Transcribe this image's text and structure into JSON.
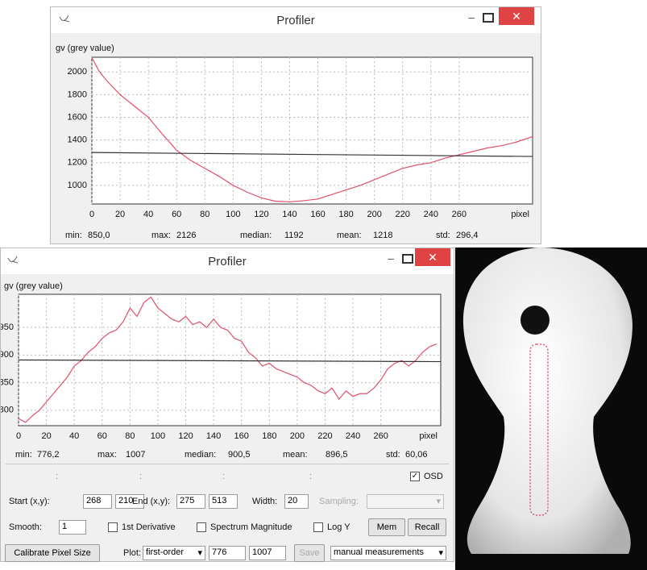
{
  "windows": [
    {
      "title": "Profiler",
      "ylabel": "gv (grey value)",
      "xlabel": "pixel",
      "chart": {
        "type": "line",
        "xlim": [
          0,
          312
        ],
        "ylim": [
          836,
          2130
        ],
        "xticks": [
          0,
          20,
          40,
          60,
          80,
          100,
          120,
          140,
          160,
          180,
          200,
          220,
          240,
          260
        ],
        "yticks": [
          1000,
          1200,
          1400,
          1600,
          1800,
          2000
        ],
        "grid": true,
        "series": [
          {
            "color": "#e0506a",
            "x": [
              0,
              5,
              10,
              20,
              30,
              40,
              50,
              60,
              70,
              80,
              90,
              100,
              110,
              120,
              130,
              140,
              150,
              160,
              170,
              180,
              190,
              200,
              210,
              220,
              230,
              240,
              250,
              260,
              270,
              280,
              290,
              300,
              312
            ],
            "values": [
              2126,
              2010,
              1930,
              1800,
              1700,
              1600,
              1450,
              1310,
              1220,
              1150,
              1080,
              1000,
              940,
              890,
              860,
              855,
              865,
              880,
              920,
              960,
              1000,
              1050,
              1100,
              1150,
              1180,
              1200,
              1240,
              1270,
              1300,
              1330,
              1350,
              1380,
              1430
            ]
          },
          {
            "color": "#333333",
            "x": [
              0,
              312
            ],
            "values": [
              1290,
              1255
            ]
          }
        ]
      },
      "stats": [
        {
          "label": "min:",
          "value": "850,0"
        },
        {
          "label": "max:",
          "value": "2126"
        },
        {
          "label": "median:",
          "value": "1192"
        },
        {
          "label": "mean:",
          "value": "1218"
        },
        {
          "label": "std:",
          "value": "296,4"
        }
      ]
    },
    {
      "title": "Profiler",
      "ylabel": "gv (grey value)",
      "xlabel": "pixel",
      "chart": {
        "type": "line",
        "xlim": [
          0,
          303
        ],
        "ylim": [
          772,
          1010
        ],
        "xticks": [
          0,
          20,
          40,
          60,
          80,
          100,
          120,
          140,
          160,
          180,
          200,
          220,
          240,
          260
        ],
        "yticks": [
          800,
          850,
          900,
          950
        ],
        "grid": true,
        "series": [
          {
            "color": "#e0506a",
            "x": [
              0,
              5,
              10,
              15,
              20,
              25,
              30,
              35,
              40,
              45,
              50,
              55,
              60,
              65,
              70,
              75,
              80,
              85,
              90,
              95,
              100,
              105,
              110,
              115,
              120,
              125,
              130,
              135,
              140,
              145,
              150,
              155,
              160,
              165,
              170,
              175,
              180,
              185,
              190,
              195,
              200,
              205,
              210,
              215,
              220,
              225,
              230,
              235,
              240,
              245,
              250,
              255,
              260,
              265,
              270,
              275,
              280,
              285,
              290,
              295,
              300
            ],
            "values": [
              785,
              778,
              790,
              800,
              815,
              830,
              845,
              860,
              880,
              890,
              905,
              915,
              930,
              940,
              945,
              960,
              985,
              970,
              995,
              1005,
              985,
              975,
              965,
              960,
              970,
              955,
              960,
              950,
              965,
              950,
              945,
              930,
              925,
              905,
              895,
              880,
              885,
              875,
              870,
              865,
              860,
              850,
              845,
              835,
              830,
              840,
              820,
              835,
              825,
              830,
              830,
              840,
              855,
              875,
              885,
              890,
              880,
              890,
              905,
              915,
              920
            ]
          },
          {
            "color": "#333333",
            "x": [
              0,
              303
            ],
            "values": [
              891,
              888
            ]
          }
        ]
      },
      "stats": [
        {
          "label": "min:",
          "value": "776,2"
        },
        {
          "label": "max:",
          "value": "1007"
        },
        {
          "label": "median:",
          "value": "900,5"
        },
        {
          "label": "mean:",
          "value": "896,5"
        },
        {
          "label": "std:",
          "value": "60,06"
        }
      ]
    }
  ],
  "controls": {
    "colons": [
      ":",
      ":",
      ":",
      ":"
    ],
    "osd": "OSD",
    "start_label": "Start (x,y):",
    "start_x": "268",
    "start_y": "210",
    "end_label": "End (x,y):",
    "end_x": "275",
    "end_y": "513",
    "width_label": "Width:",
    "width": "20",
    "sampling_label": "Sampling:",
    "smooth_label": "Smooth:",
    "smooth": "1",
    "derivative": "1st Derivative",
    "spectrum": "Spectrum Magnitude",
    "logy": "Log Y",
    "mem": "Mem",
    "recall": "Recall",
    "calibrate": "Calibrate Pixel Size",
    "plot_label": "Plot:",
    "plot_mode": "first-order",
    "plot_min": "776",
    "plot_max": "1007",
    "save": "Save",
    "measurements": "manual measurements"
  }
}
